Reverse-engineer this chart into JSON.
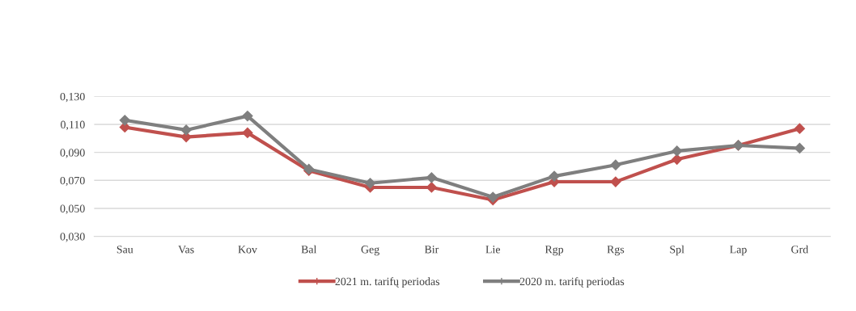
{
  "chart_data": {
    "type": "line",
    "categories": [
      "Sau",
      "Vas",
      "Kov",
      "Bal",
      "Geg",
      "Bir",
      "Lie",
      "Rgp",
      "Rgs",
      "Spl",
      "Lap",
      "Grd"
    ],
    "series": [
      {
        "name": "2021 m. tarifų periodas",
        "color": "#c0504d",
        "values": [
          0.108,
          0.101,
          0.104,
          0.077,
          0.065,
          0.065,
          0.056,
          0.069,
          0.069,
          0.085,
          0.095,
          0.107
        ]
      },
      {
        "name": "2020 m. tarifų periodas",
        "color": "#7f7f7f",
        "values": [
          0.113,
          0.106,
          0.116,
          0.078,
          0.068,
          0.072,
          0.058,
          0.073,
          0.081,
          0.091,
          0.095,
          0.093
        ]
      }
    ],
    "ylim": [
      0.03,
      0.13
    ],
    "yticks": [
      {
        "value": 0.03,
        "label": "0,030"
      },
      {
        "value": 0.05,
        "label": "0,050"
      },
      {
        "value": 0.07,
        "label": "0,070"
      },
      {
        "value": 0.09,
        "label": "0,090"
      },
      {
        "value": 0.11,
        "label": "0,110"
      },
      {
        "value": 0.13,
        "label": "0,130"
      }
    ],
    "grid": "y",
    "legend": "bottom",
    "marker": "diamond",
    "line_style": "solid"
  }
}
